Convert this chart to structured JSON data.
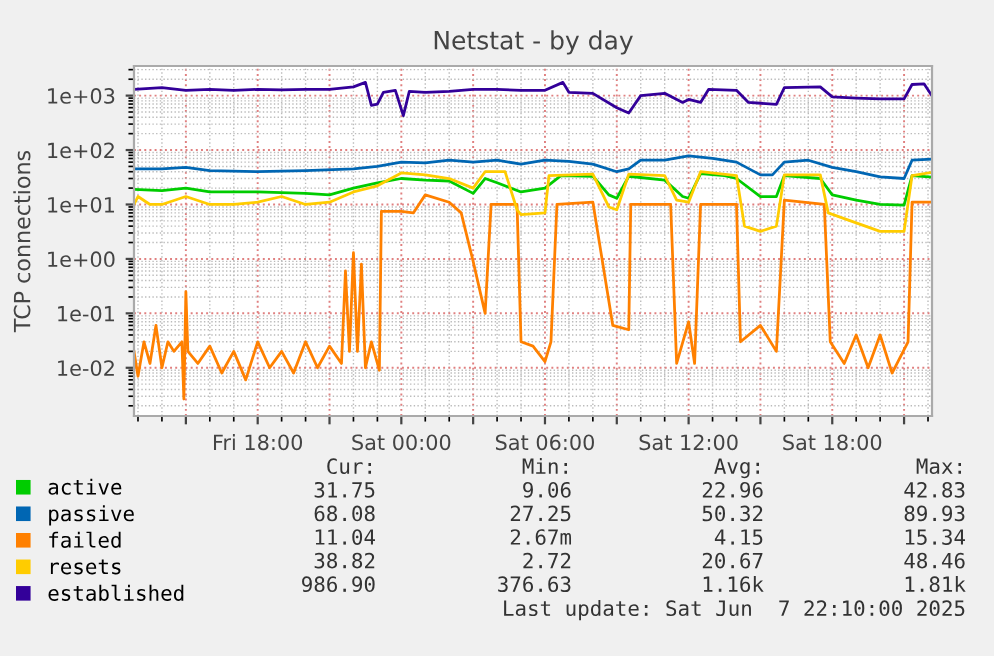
{
  "chart_data": {
    "type": "line",
    "title": "Netstat - by day",
    "ylabel": "TCP connections",
    "log": true,
    "grid": true,
    "legend": "bottom left",
    "marker": "none",
    "line_style": "solid",
    "xlim": [
      "2025-06-06T12:50",
      "2025-06-07T22:10"
    ],
    "xticks": [
      {
        "value": "2025-06-06T15:00",
        "label": null
      },
      {
        "value": "2025-06-06T18:00",
        "label": "Fri 18:00"
      },
      {
        "value": "2025-06-06T21:00",
        "label": null
      },
      {
        "value": "2025-06-07T00:00",
        "label": "Sat 00:00"
      },
      {
        "value": "2025-06-07T03:00",
        "label": null
      },
      {
        "value": "2025-06-07T06:00",
        "label": "Sat 06:00"
      },
      {
        "value": "2025-06-07T09:00",
        "label": null
      },
      {
        "value": "2025-06-07T12:00",
        "label": "Sat 12:00"
      },
      {
        "value": "2025-06-07T15:00",
        "label": null
      },
      {
        "value": "2025-06-07T18:00",
        "label": "Sat 18:00"
      },
      {
        "value": "2025-06-07T21:00",
        "label": null
      }
    ],
    "ylim": [
      0.0013,
      3500
    ],
    "yticks": [
      {
        "value": 0.01,
        "label": "1e-02"
      },
      {
        "value": 0.1,
        "label": "1e-01"
      },
      {
        "value": 1,
        "label": "1e+00"
      },
      {
        "value": 10,
        "label": "1e+01"
      },
      {
        "value": 100,
        "label": "1e+02"
      },
      {
        "value": 1000,
        "label": "1e+03"
      }
    ],
    "series": [
      {
        "name": "active",
        "color": "#00cc00",
        "x": [
          "2025-06-06T12:50",
          "2025-06-06T14:00",
          "2025-06-06T15:00",
          "2025-06-06T16:00",
          "2025-06-06T18:00",
          "2025-06-06T20:00",
          "2025-06-06T21:00",
          "2025-06-06T22:00",
          "2025-06-06T23:00",
          "2025-06-07T00:00",
          "2025-06-07T01:00",
          "2025-06-07T02:00",
          "2025-06-07T03:00",
          "2025-06-07T03:30",
          "2025-06-07T04:00",
          "2025-06-07T05:00",
          "2025-06-07T06:00",
          "2025-06-07T06:40",
          "2025-06-07T08:00",
          "2025-06-07T08:40",
          "2025-06-07T09:00",
          "2025-06-07T09:30",
          "2025-06-07T11:00",
          "2025-06-07T11:45",
          "2025-06-07T12:00",
          "2025-06-07T12:30",
          "2025-06-07T13:30",
          "2025-06-07T14:00",
          "2025-06-07T15:00",
          "2025-06-07T15:40",
          "2025-06-07T16:00",
          "2025-06-07T17:30",
          "2025-06-07T18:00",
          "2025-06-07T19:00",
          "2025-06-07T20:00",
          "2025-06-07T21:00",
          "2025-06-07T21:20",
          "2025-06-07T22:10"
        ],
        "values": [
          19,
          18,
          20,
          17,
          17,
          16,
          15,
          20,
          25,
          30,
          28,
          27,
          16,
          30,
          25,
          17,
          20,
          34,
          33,
          15,
          13,
          33,
          28,
          14,
          13,
          37,
          34,
          30,
          14,
          14,
          34,
          30,
          15,
          12,
          10,
          9.7,
          34,
          31.75
        ]
      },
      {
        "name": "passive",
        "color": "#0066b3",
        "x": [
          "2025-06-06T12:50",
          "2025-06-06T14:00",
          "2025-06-06T15:00",
          "2025-06-06T16:00",
          "2025-06-06T18:00",
          "2025-06-06T20:00",
          "2025-06-06T22:00",
          "2025-06-06T23:00",
          "2025-06-07T00:00",
          "2025-06-07T01:00",
          "2025-06-07T02:00",
          "2025-06-07T03:00",
          "2025-06-07T04:00",
          "2025-06-07T05:00",
          "2025-06-07T06:00",
          "2025-06-07T07:00",
          "2025-06-07T08:00",
          "2025-06-07T09:00",
          "2025-06-07T09:30",
          "2025-06-07T10:00",
          "2025-06-07T11:00",
          "2025-06-07T12:00",
          "2025-06-07T13:00",
          "2025-06-07T14:00",
          "2025-06-07T15:00",
          "2025-06-07T15:30",
          "2025-06-07T16:00",
          "2025-06-07T17:00",
          "2025-06-07T18:00",
          "2025-06-07T19:00",
          "2025-06-07T20:00",
          "2025-06-07T21:00",
          "2025-06-07T21:20",
          "2025-06-07T22:10"
        ],
        "values": [
          45,
          45,
          48,
          42,
          40,
          42,
          45,
          50,
          60,
          58,
          65,
          60,
          65,
          55,
          65,
          62,
          55,
          40,
          45,
          65,
          65,
          78,
          70,
          60,
          35,
          35,
          60,
          65,
          48,
          40,
          32,
          30,
          65,
          68.08
        ]
      },
      {
        "name": "failed",
        "color": "#ff8000",
        "x": [
          "2025-06-06T12:50",
          "2025-06-06T13:00",
          "2025-06-06T13:15",
          "2025-06-06T13:30",
          "2025-06-06T13:45",
          "2025-06-06T14:00",
          "2025-06-06T14:15",
          "2025-06-06T14:30",
          "2025-06-06T14:50",
          "2025-06-06T14:55",
          "2025-06-06T15:00",
          "2025-06-06T15:05",
          "2025-06-06T15:30",
          "2025-06-06T16:00",
          "2025-06-06T16:30",
          "2025-06-06T17:00",
          "2025-06-06T17:30",
          "2025-06-06T18:00",
          "2025-06-06T18:30",
          "2025-06-06T19:00",
          "2025-06-06T19:30",
          "2025-06-06T20:00",
          "2025-06-06T20:30",
          "2025-06-06T21:00",
          "2025-06-06T21:30",
          "2025-06-06T21:40",
          "2025-06-06T21:50",
          "2025-06-06T22:00",
          "2025-06-06T22:10",
          "2025-06-06T22:20",
          "2025-06-06T22:30",
          "2025-06-06T22:45",
          "2025-06-06T23:05",
          "2025-06-06T23:10",
          "2025-06-07T00:00",
          "2025-06-07T00:30",
          "2025-06-07T01:00",
          "2025-06-07T02:00",
          "2025-06-07T02:30",
          "2025-06-07T03:00",
          "2025-06-07T03:30",
          "2025-06-07T03:45",
          "2025-06-07T04:50",
          "2025-06-07T05:00",
          "2025-06-07T05:30",
          "2025-06-07T06:00",
          "2025-06-07T06:15",
          "2025-06-07T06:30",
          "2025-06-07T08:00",
          "2025-06-07T08:50",
          "2025-06-07T09:30",
          "2025-06-07T09:35",
          "2025-06-07T11:15",
          "2025-06-07T11:30",
          "2025-06-07T12:00",
          "2025-06-07T12:15",
          "2025-06-07T12:30",
          "2025-06-07T14:00",
          "2025-06-07T14:10",
          "2025-06-07T15:00",
          "2025-06-07T15:40",
          "2025-06-07T16:00",
          "2025-06-07T17:40",
          "2025-06-07T17:55",
          "2025-06-07T18:30",
          "2025-06-07T19:00",
          "2025-06-07T19:30",
          "2025-06-07T20:00",
          "2025-06-07T20:30",
          "2025-06-07T21:10",
          "2025-06-07T21:20",
          "2025-06-07T22:10"
        ],
        "values": [
          0.02,
          0.007,
          0.03,
          0.012,
          0.06,
          0.01,
          0.03,
          0.02,
          0.03,
          0.00267,
          0.25,
          0.02,
          0.012,
          0.025,
          0.008,
          0.02,
          0.006,
          0.03,
          0.01,
          0.02,
          0.008,
          0.03,
          0.01,
          0.025,
          0.012,
          0.6,
          0.02,
          1.3,
          0.02,
          0.8,
          0.01,
          0.03,
          0.009,
          7.5,
          7.5,
          7,
          15,
          11,
          7,
          0.9,
          0.1,
          10,
          10,
          0.03,
          0.025,
          0.013,
          0.03,
          10,
          11,
          0.06,
          0.05,
          10,
          10,
          0.012,
          0.07,
          0.012,
          10,
          10,
          0.03,
          0.06,
          0.02,
          12,
          10,
          0.03,
          0.012,
          0.04,
          0.01,
          0.04,
          0.008,
          0.03,
          11,
          11.04
        ]
      },
      {
        "name": "resets",
        "color": "#ffcc00",
        "x": [
          "2025-06-06T12:50",
          "2025-06-06T13:00",
          "2025-06-06T13:30",
          "2025-06-06T14:00",
          "2025-06-06T15:00",
          "2025-06-06T16:00",
          "2025-06-06T17:00",
          "2025-06-06T18:00",
          "2025-06-06T19:00",
          "2025-06-06T20:00",
          "2025-06-06T21:00",
          "2025-06-06T22:00",
          "2025-06-06T23:00",
          "2025-06-07T00:00",
          "2025-06-07T01:00",
          "2025-06-07T02:00",
          "2025-06-07T03:00",
          "2025-06-07T03:30",
          "2025-06-07T04:20",
          "2025-06-07T04:50",
          "2025-06-07T05:00",
          "2025-06-07T06:00",
          "2025-06-07T06:10",
          "2025-06-07T08:00",
          "2025-06-07T08:40",
          "2025-06-07T09:00",
          "2025-06-07T09:30",
          "2025-06-07T11:00",
          "2025-06-07T11:30",
          "2025-06-07T12:00",
          "2025-06-07T12:30",
          "2025-06-07T14:00",
          "2025-06-07T14:20",
          "2025-06-07T15:00",
          "2025-06-07T15:40",
          "2025-06-07T16:00",
          "2025-06-07T17:30",
          "2025-06-07T17:50",
          "2025-06-07T18:30",
          "2025-06-07T20:00",
          "2025-06-07T21:00",
          "2025-06-07T21:20",
          "2025-06-07T22:10"
        ],
        "values": [
          10,
          14,
          10,
          10,
          14,
          10,
          10,
          11,
          14,
          10,
          11,
          17,
          22,
          38,
          35,
          30,
          20,
          40,
          40,
          8,
          6.5,
          7,
          34,
          36,
          9,
          8,
          36,
          34,
          12,
          11,
          40,
          34,
          4,
          3.2,
          4,
          35,
          35,
          7,
          5.5,
          3.2,
          3.2,
          34,
          38.82
        ]
      },
      {
        "name": "established",
        "color": "#330099",
        "x": [
          "2025-06-06T12:50",
          "2025-06-06T14:00",
          "2025-06-06T15:00",
          "2025-06-06T16:00",
          "2025-06-06T17:00",
          "2025-06-06T18:00",
          "2025-06-06T19:00",
          "2025-06-06T20:00",
          "2025-06-06T21:00",
          "2025-06-06T22:00",
          "2025-06-06T22:30",
          "2025-06-06T22:45",
          "2025-06-06T23:00",
          "2025-06-06T23:15",
          "2025-06-06T23:45",
          "2025-06-07T00:05",
          "2025-06-07T00:20",
          "2025-06-07T01:00",
          "2025-06-07T02:00",
          "2025-06-07T03:00",
          "2025-06-07T04:00",
          "2025-06-07T05:00",
          "2025-06-07T06:00",
          "2025-06-07T06:45",
          "2025-06-07T07:00",
          "2025-06-07T08:00",
          "2025-06-07T09:00",
          "2025-06-07T09:30",
          "2025-06-07T10:00",
          "2025-06-07T11:00",
          "2025-06-07T11:45",
          "2025-06-07T12:00",
          "2025-06-07T12:30",
          "2025-06-07T12:50",
          "2025-06-07T14:00",
          "2025-06-07T14:30",
          "2025-06-07T15:40",
          "2025-06-07T16:00",
          "2025-06-07T17:30",
          "2025-06-07T18:00",
          "2025-06-07T19:00",
          "2025-06-07T20:00",
          "2025-06-07T21:00",
          "2025-06-07T21:20",
          "2025-06-07T21:50",
          "2025-06-07T22:10"
        ],
        "values": [
          1300,
          1400,
          1250,
          1300,
          1250,
          1300,
          1280,
          1300,
          1300,
          1450,
          1750,
          660,
          700,
          1150,
          1250,
          430,
          1200,
          1150,
          1200,
          1300,
          1300,
          1250,
          1250,
          1750,
          1150,
          1100,
          600,
          480,
          1000,
          1100,
          750,
          850,
          750,
          1300,
          1250,
          750,
          690,
          1400,
          1450,
          950,
          900,
          870,
          870,
          1600,
          1650,
          986.9
        ]
      }
    ],
    "annotations": [
      "Cur:",
      "Min:",
      "Avg:",
      "Max:",
      "31.75",
      "9.06",
      "22.96",
      "42.83",
      "68.08",
      "27.25",
      "50.32",
      "89.93",
      "11.04",
      "2.67m",
      "4.15",
      "15.34",
      "38.82",
      "2.72",
      "20.67",
      "48.46",
      "986.90",
      "376.63",
      "1.16k",
      "1.81k",
      "Last update: Sat Jun  7 22:10:00 2025"
    ]
  }
}
